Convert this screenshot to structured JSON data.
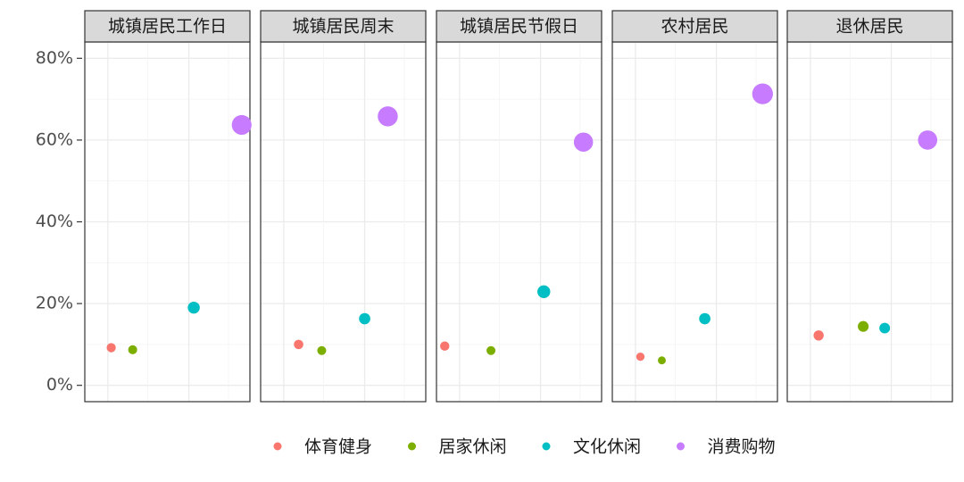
{
  "chart_data": {
    "type": "scatter",
    "facets": [
      "城镇居民工作日",
      "城镇居民周末",
      "城镇居民节假日",
      "农村居民",
      "退休居民"
    ],
    "series": [
      {
        "name": "体育健身",
        "color": "#F8766D",
        "x": [
          16,
          23,
          5,
          17,
          19
        ],
        "values": [
          9.2,
          10,
          9.6,
          7,
          12.2
        ]
      },
      {
        "name": "居家休闲",
        "color": "#7CAE00",
        "x": [
          29,
          37,
          33,
          30,
          46
        ],
        "values": [
          8.7,
          8.5,
          8.5,
          6.1,
          14.4
        ]
      },
      {
        "name": "文化休闲",
        "color": "#00BFC4",
        "x": [
          66,
          63,
          65,
          56,
          59
        ],
        "values": [
          19,
          16.3,
          22.9,
          16.3,
          14
        ]
      },
      {
        "name": "消费购物",
        "color": "#C77CFF",
        "x": [
          95,
          77,
          89,
          91,
          85
        ],
        "values": [
          63.7,
          65.8,
          59.5,
          71.3,
          60
        ]
      }
    ],
    "xlim": [
      0,
      100
    ],
    "ylim": [
      -4,
      84
    ],
    "yticks": [
      {
        "value": 0,
        "label": "0%"
      },
      {
        "value": 20,
        "label": "20%"
      },
      {
        "value": 40,
        "label": "40%"
      },
      {
        "value": 60,
        "label": "60%"
      },
      {
        "value": 80,
        "label": "80%"
      }
    ],
    "grid": true,
    "legend": "bottom"
  }
}
